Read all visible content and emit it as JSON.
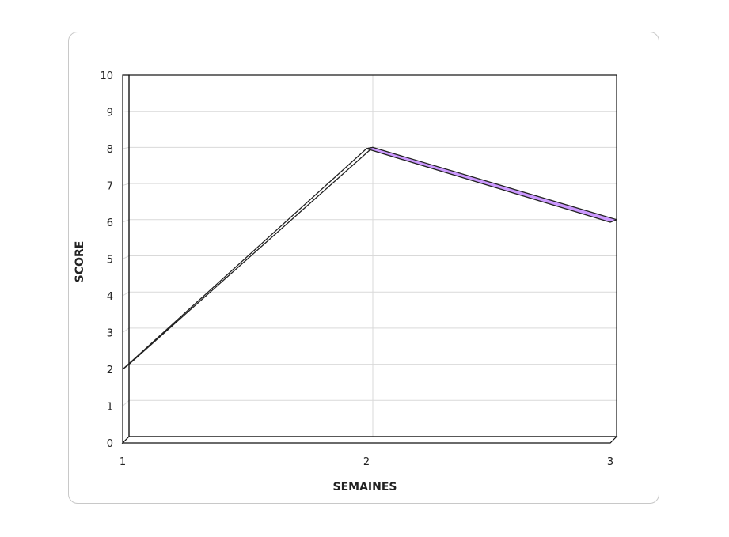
{
  "chart_data": {
    "type": "line",
    "x": [
      1,
      2,
      3
    ],
    "series": [
      {
        "values": [
          2,
          8,
          6
        ]
      }
    ],
    "xlabel": "SEMAINES",
    "ylabel": "SCORE",
    "x_ticks": [
      "1",
      "2",
      "3"
    ],
    "y_ticks": [
      "0",
      "1",
      "2",
      "3",
      "4",
      "5",
      "6",
      "7",
      "8",
      "9",
      "10"
    ],
    "xlim": [
      1,
      3
    ],
    "ylim": [
      0,
      10
    ],
    "grid": true,
    "style": "3d",
    "colors": {
      "line": "#222222",
      "ribbon_fill": "#cc99ff",
      "grid": "#d9d9d9",
      "frame": "#111111"
    }
  }
}
